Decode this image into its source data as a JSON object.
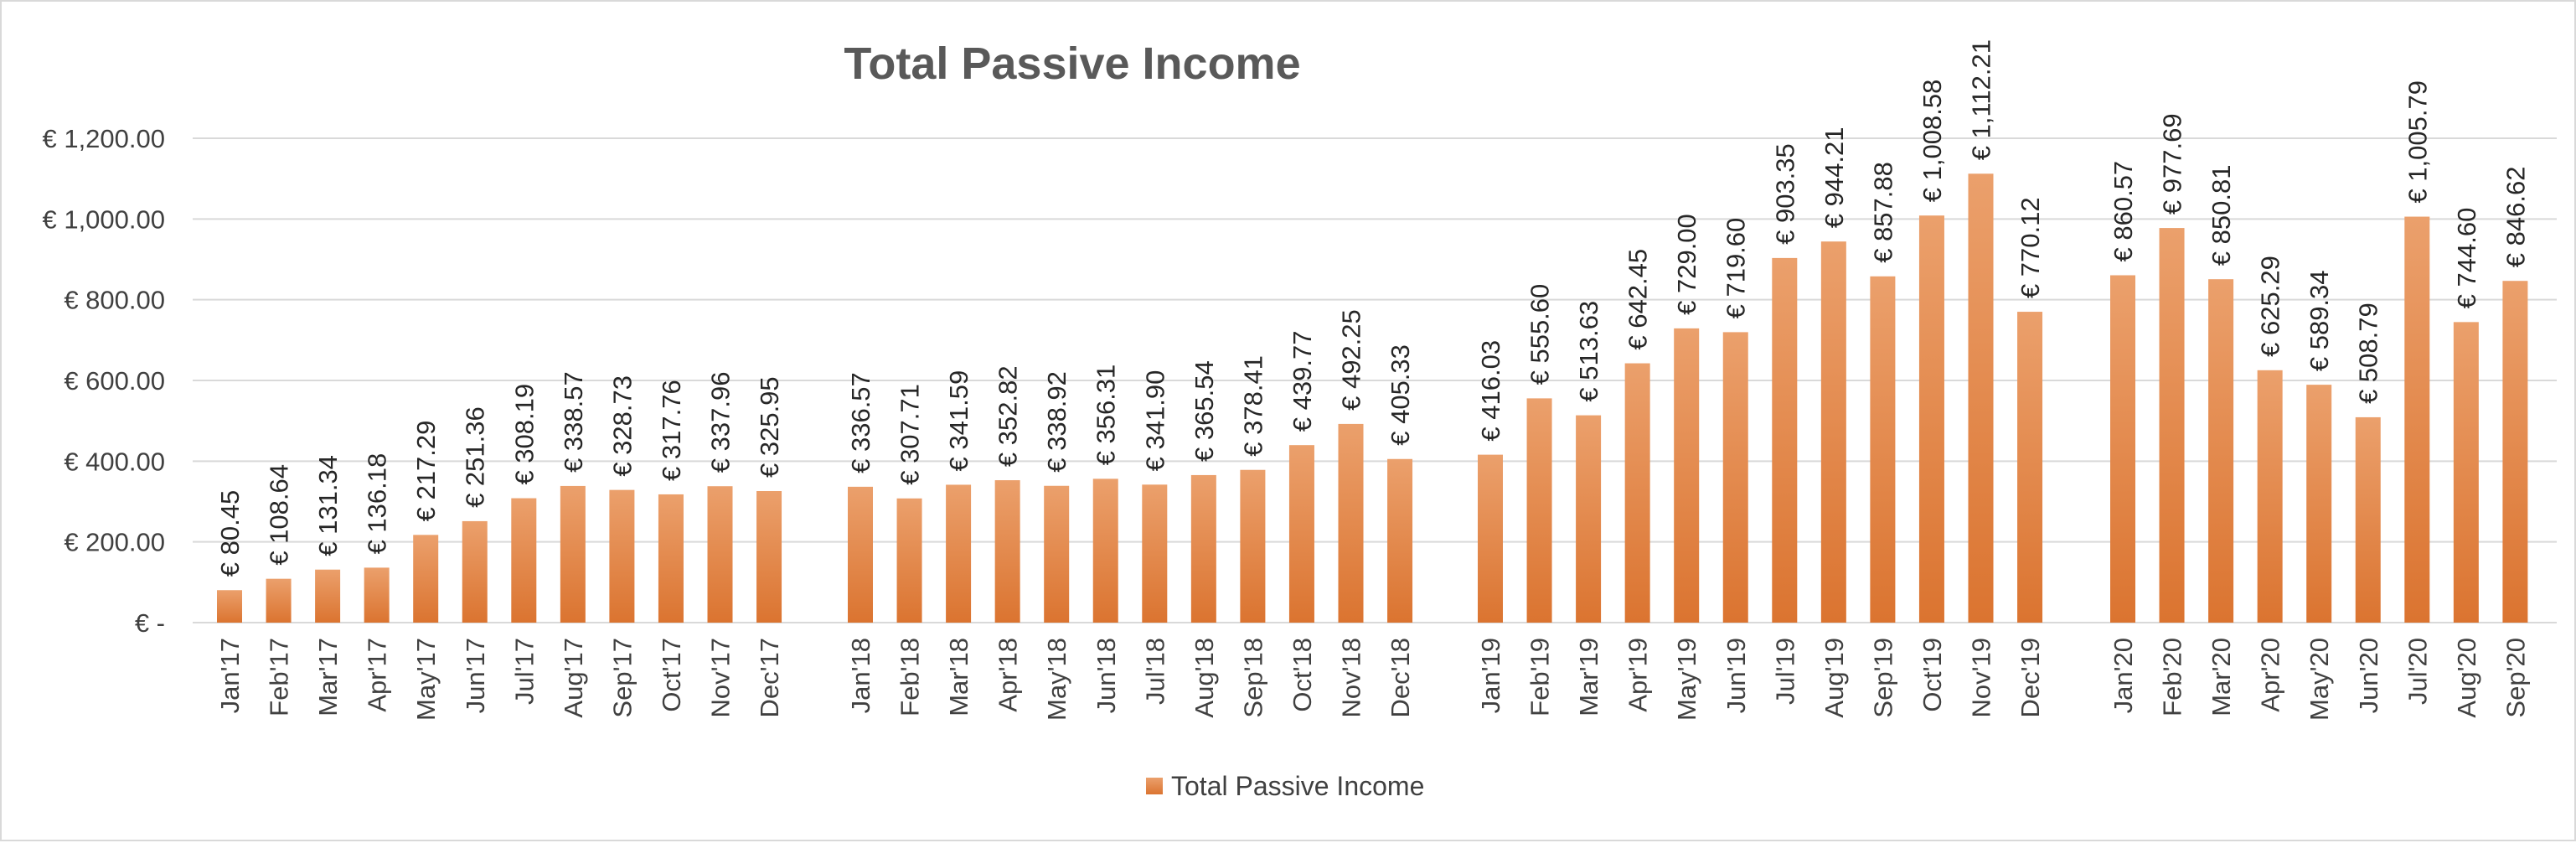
{
  "chart_data": {
    "type": "bar",
    "title": "Total Passive Income",
    "xlabel": "",
    "ylabel": "",
    "ylim": [
      0,
      1200
    ],
    "y_ticks": [
      0,
      200,
      400,
      600,
      800,
      1000,
      1200
    ],
    "y_tick_labels": [
      "€ -",
      "€ 200.00",
      "€ 400.00",
      "€ 600.00",
      "€ 800.00",
      "€ 1,000.00",
      "€ 1,200.00"
    ],
    "grid": true,
    "legend_position": "bottom",
    "bar_color": "#E07B39",
    "categories": [
      "Jan'17",
      "Feb'17",
      "Mar'17",
      "Apr'17",
      "May'17",
      "Jun'17",
      "Jul'17",
      "Aug'17",
      "Sep'17",
      "Oct'17",
      "Nov'17",
      "Dec'17",
      "Jan'18",
      "Feb'18",
      "Mar'18",
      "Apr'18",
      "May'18",
      "Jun'18",
      "Jul'18",
      "Aug'18",
      "Sep'18",
      "Oct'18",
      "Nov'18",
      "Dec'18",
      "Jan'19",
      "Feb'19",
      "Mar'19",
      "Apr'19",
      "May'19",
      "Jun'19",
      "Jul'19",
      "Aug'19",
      "Sep'19",
      "Oct'19",
      "Nov'19",
      "Dec'19",
      "Jan'20",
      "Feb'20",
      "Mar'20",
      "Apr'20",
      "May'20",
      "Jun'20",
      "Jul'20",
      "Aug'20",
      "Sep'20"
    ],
    "series": [
      {
        "name": "Total Passive Income",
        "values": [
          80.45,
          108.64,
          131.34,
          136.18,
          217.29,
          251.36,
          308.19,
          338.57,
          328.73,
          317.76,
          337.96,
          325.95,
          336.57,
          307.71,
          341.59,
          352.82,
          338.92,
          356.31,
          341.9,
          365.54,
          378.41,
          439.77,
          492.25,
          405.33,
          416.03,
          555.6,
          513.63,
          642.45,
          729.0,
          719.6,
          903.35,
          944.21,
          857.88,
          1008.58,
          1112.21,
          770.12,
          860.57,
          977.69,
          850.81,
          625.29,
          589.34,
          508.79,
          1005.79,
          744.6,
          846.62
        ],
        "labels": [
          "€ 80.45",
          "€ 108.64",
          "€ 131.34",
          "€ 136.18",
          "€ 217.29",
          "€ 251.36",
          "€ 308.19",
          "€ 338.57",
          "€ 328.73",
          "€ 317.76",
          "€ 337.96",
          "€ 325.95",
          "€ 336.57",
          "€ 307.71",
          "€ 341.59",
          "€ 352.82",
          "€ 338.92",
          "€ 356.31",
          "€ 341.90",
          "€ 365.54",
          "€ 378.41",
          "€ 439.77",
          "€ 492.25",
          "€ 405.33",
          "€ 416.03",
          "€ 555.60",
          "€ 513.63",
          "€ 642.45",
          "€ 729.00",
          "€ 719.60",
          "€ 903.35",
          "€ 944.21",
          "€ 857.88",
          "€ 1,008.58",
          "€ 1,112.21",
          "€ 770.12",
          "€ 860.57",
          "€ 977.69",
          "€ 850.81",
          "€ 625.29",
          "€ 589.34",
          "€ 508.79",
          "€ 1,005.79",
          "€ 744.60",
          "€ 846.62"
        ]
      }
    ]
  }
}
